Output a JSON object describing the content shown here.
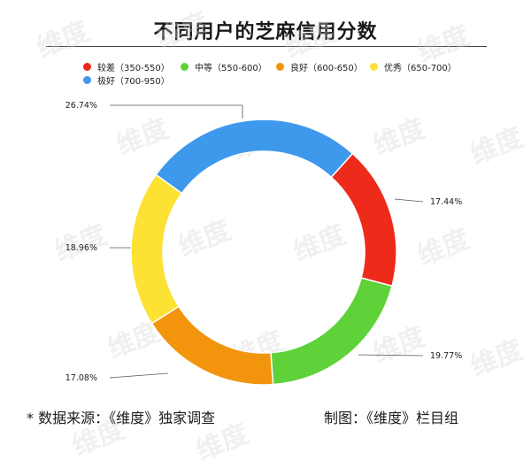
{
  "watermark_text": "维度",
  "chart_data": {
    "type": "donut",
    "title": "不同用户的芝麻信用分数",
    "categories": [
      "较差（350-550）",
      "中等（550-600）",
      "良好（600-650）",
      "优秀（650-700）",
      "极好（700-950）"
    ],
    "values": [
      17.44,
      19.77,
      17.08,
      18.96,
      26.74
    ],
    "labels": [
      "17.44%",
      "19.77%",
      "17.08%",
      "18.96%",
      "26.74%"
    ],
    "colors": [
      "#ee2a1b",
      "#5fd23a",
      "#f2950c",
      "#fde133",
      "#3e98ec"
    ],
    "legend_position": "top"
  },
  "footer": {
    "source": "*  数据来源：《维度》独家调查",
    "credit": "制图：《维度》栏目组"
  }
}
